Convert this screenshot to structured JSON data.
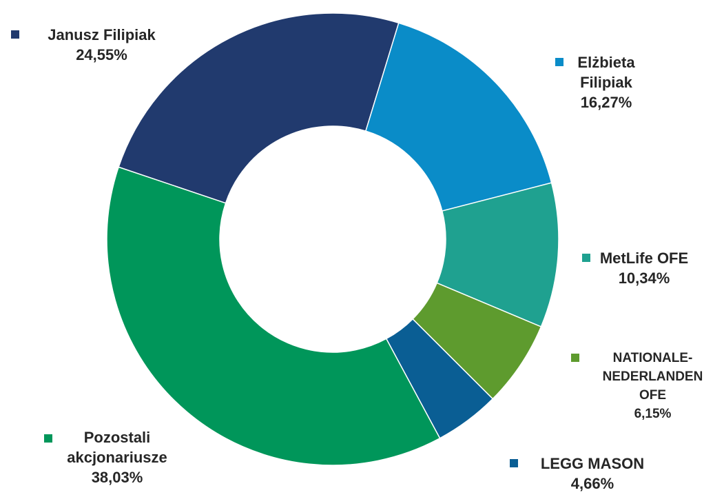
{
  "chart_data": {
    "type": "pie",
    "categories": [
      "Janusz Filipiak",
      "Elżbieta Filipiak",
      "MetLife OFE",
      "NATIONALE-NEDERLANDEN OFE",
      "LEGG MASON",
      "Pozostali akcjonariusze"
    ],
    "values": [
      24.55,
      16.27,
      10.34,
      6.15,
      4.66,
      38.03
    ],
    "value_labels": [
      "24,55%",
      "16,27%",
      "10,34%",
      "6,15%",
      "4,66%",
      "38,03%"
    ],
    "colors": [
      "#213a6e",
      "#0a8cc8",
      "#1fa190",
      "#5e9b2e",
      "#0a5e94",
      "#00965a"
    ],
    "donut": true
  }
}
